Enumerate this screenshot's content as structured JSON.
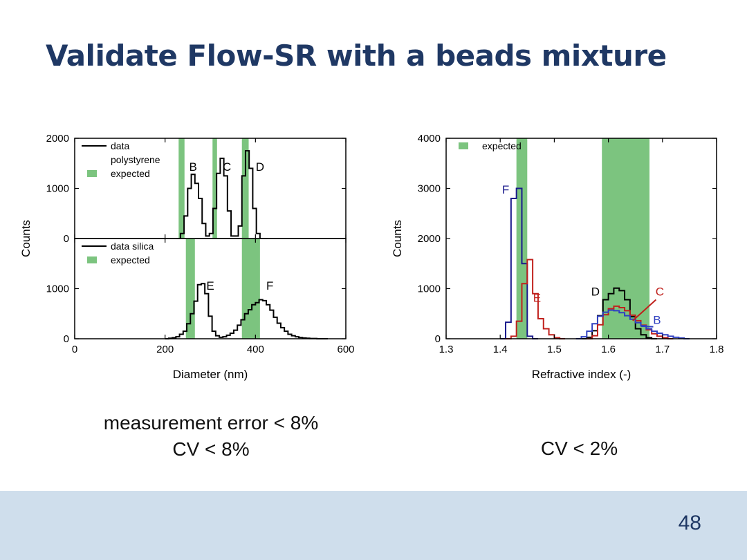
{
  "slide": {
    "title": "Validate Flow-SR with a beads mixture",
    "caption_left_line1": "measurement error < 8%",
    "caption_left_line2": "CV < 8%",
    "caption_right": "CV < 2%",
    "page_number": "48"
  },
  "colors": {
    "title": "#1f3864",
    "expected_band": "#7cc47f",
    "footer": "#cfdeec",
    "series_black": "#000000",
    "series_navy": "#1a1a8c",
    "series_red": "#c0201c",
    "series_blue": "#3040c0"
  },
  "chart_data": [
    {
      "type": "histogram",
      "panel": "top-left",
      "xlim": [
        0,
        600
      ],
      "ylim": [
        0,
        2000
      ],
      "xticks": [],
      "yticks": [
        0,
        1000,
        2000
      ],
      "legend": [
        "data",
        "polystyrene",
        "expected"
      ],
      "legend_position": "top-left",
      "expected_bands": [
        [
          230,
          243
        ],
        [
          305,
          315
        ],
        [
          370,
          385
        ]
      ],
      "annotations": [
        {
          "text": "B",
          "x": 262,
          "y": 1350
        },
        {
          "text": "C",
          "x": 337,
          "y": 1350
        },
        {
          "text": "D",
          "x": 410,
          "y": 1350
        }
      ],
      "series": [
        {
          "color": "black",
          "bin_width": 8,
          "x": [
            226,
            234,
            242,
            250,
            258,
            266,
            274,
            282,
            290,
            298,
            306,
            314,
            322,
            330,
            338,
            346,
            354,
            362,
            370,
            378,
            386,
            394,
            402,
            410,
            418
          ],
          "values": [
            0,
            100,
            450,
            1000,
            1280,
            1100,
            800,
            300,
            50,
            100,
            600,
            1300,
            1600,
            1250,
            550,
            50,
            50,
            250,
            1250,
            1750,
            1400,
            600,
            100,
            0,
            0
          ]
        }
      ]
    },
    {
      "type": "histogram",
      "panel": "bottom-left",
      "xlim": [
        0,
        600
      ],
      "ylim": [
        0,
        2000
      ],
      "xlabel": "Diameter (nm)",
      "ylabel": "Counts",
      "xticks": [
        0,
        200,
        400,
        600
      ],
      "yticks": [
        0,
        1000
      ],
      "legend": [
        "data silica",
        "expected"
      ],
      "legend_position": "top-left",
      "expected_bands": [
        [
          246,
          266
        ],
        [
          370,
          410
        ]
      ],
      "annotations": [
        {
          "text": "E",
          "x": 300,
          "y": 980
        },
        {
          "text": "F",
          "x": 432,
          "y": 980
        }
      ],
      "series": [
        {
          "color": "black",
          "bin_width": 8,
          "x": [
            200,
            208,
            216,
            224,
            232,
            240,
            248,
            256,
            264,
            272,
            280,
            288,
            296,
            304,
            312,
            320,
            328,
            336,
            344,
            352,
            360,
            368,
            376,
            384,
            392,
            400,
            408,
            416,
            424,
            432,
            440,
            448,
            456,
            464,
            472,
            480,
            488,
            496,
            504,
            512,
            520,
            528,
            536,
            544,
            552
          ],
          "values": [
            0,
            10,
            20,
            40,
            90,
            150,
            300,
            500,
            750,
            1080,
            1100,
            900,
            450,
            150,
            60,
            30,
            40,
            70,
            110,
            170,
            270,
            380,
            500,
            580,
            680,
            720,
            780,
            760,
            680,
            570,
            430,
            310,
            220,
            150,
            90,
            60,
            40,
            25,
            15,
            10,
            5,
            5,
            0,
            0,
            0
          ]
        }
      ]
    },
    {
      "type": "histogram",
      "panel": "right",
      "xlim": [
        1.3,
        1.8
      ],
      "ylim": [
        0,
        4000
      ],
      "xlabel": "Refractive index (-)",
      "ylabel": "Counts",
      "xticks": [
        1.3,
        1.4,
        1.5,
        1.6,
        1.7,
        1.8
      ],
      "yticks": [
        0,
        1000,
        2000,
        3000,
        4000
      ],
      "legend": [
        "expected"
      ],
      "legend_position": "top-left",
      "expected_bands": [
        [
          1.43,
          1.45
        ],
        [
          1.588,
          1.676
        ]
      ],
      "annotations": [
        {
          "text": "F",
          "x": 1.41,
          "y": 2900,
          "color": "navy"
        },
        {
          "text": "E",
          "x": 1.468,
          "y": 740,
          "color": "red"
        },
        {
          "text": "D",
          "x": 1.576,
          "y": 860,
          "color": "black"
        },
        {
          "text": "C",
          "x": 1.695,
          "y": 860,
          "color": "red"
        },
        {
          "text": "B",
          "x": 1.69,
          "y": 300,
          "color": "blue"
        }
      ],
      "series": [
        {
          "name": "F",
          "color": "navy",
          "bin_width": 0.01,
          "x": [
            1.4,
            1.41,
            1.42,
            1.43,
            1.44,
            1.45,
            1.46
          ],
          "values": [
            0,
            330,
            2800,
            3000,
            1500,
            50,
            0
          ]
        },
        {
          "name": "E",
          "color": "red",
          "bin_width": 0.01,
          "x": [
            1.41,
            1.42,
            1.43,
            1.44,
            1.45,
            1.46,
            1.47,
            1.48,
            1.49,
            1.5,
            1.51
          ],
          "values": [
            0,
            50,
            350,
            1100,
            1580,
            900,
            400,
            200,
            80,
            20,
            0
          ]
        },
        {
          "name": "D",
          "color": "black",
          "bin_width": 0.01,
          "x": [
            1.55,
            1.56,
            1.57,
            1.58,
            1.59,
            1.6,
            1.61,
            1.62,
            1.63,
            1.64,
            1.65,
            1.66,
            1.67,
            1.68
          ],
          "values": [
            0,
            30,
            160,
            460,
            780,
            900,
            1010,
            960,
            780,
            440,
            200,
            80,
            20,
            0
          ]
        },
        {
          "name": "C",
          "color": "red",
          "bin_width": 0.01,
          "x": [
            1.56,
            1.57,
            1.58,
            1.59,
            1.6,
            1.61,
            1.62,
            1.63,
            1.64,
            1.65,
            1.66,
            1.67,
            1.68,
            1.69,
            1.7,
            1.71
          ],
          "values": [
            0,
            60,
            280,
            480,
            600,
            650,
            620,
            560,
            470,
            360,
            270,
            180,
            100,
            50,
            20,
            0
          ]
        },
        {
          "name": "B",
          "color": "blue",
          "bin_width": 0.01,
          "x": [
            1.54,
            1.55,
            1.56,
            1.57,
            1.58,
            1.59,
            1.6,
            1.61,
            1.62,
            1.63,
            1.64,
            1.65,
            1.66,
            1.67,
            1.68,
            1.69,
            1.7,
            1.71,
            1.72,
            1.73,
            1.74
          ],
          "values": [
            0,
            40,
            150,
            300,
            450,
            530,
            570,
            560,
            520,
            460,
            390,
            320,
            260,
            200,
            150,
            110,
            80,
            50,
            30,
            15,
            0
          ]
        }
      ]
    }
  ]
}
